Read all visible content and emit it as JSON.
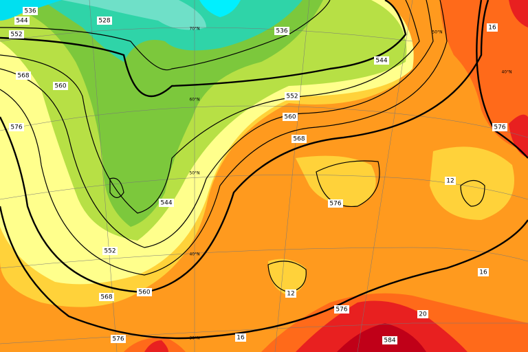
{
  "contour_labels": [
    "536",
    "528",
    "544",
    "552",
    "568",
    "560",
    "576",
    "536",
    "544",
    "552",
    "560",
    "568",
    "544",
    "552",
    "560",
    "568",
    "576",
    "576",
    "576",
    "584",
    "576",
    "12",
    "12",
    "16",
    "16",
    "16",
    "20"
  ],
  "latitude_labels": [
    "70°N",
    "60°N",
    "50°N",
    "40°N",
    "30°N",
    "50°N",
    "40°N"
  ]
}
